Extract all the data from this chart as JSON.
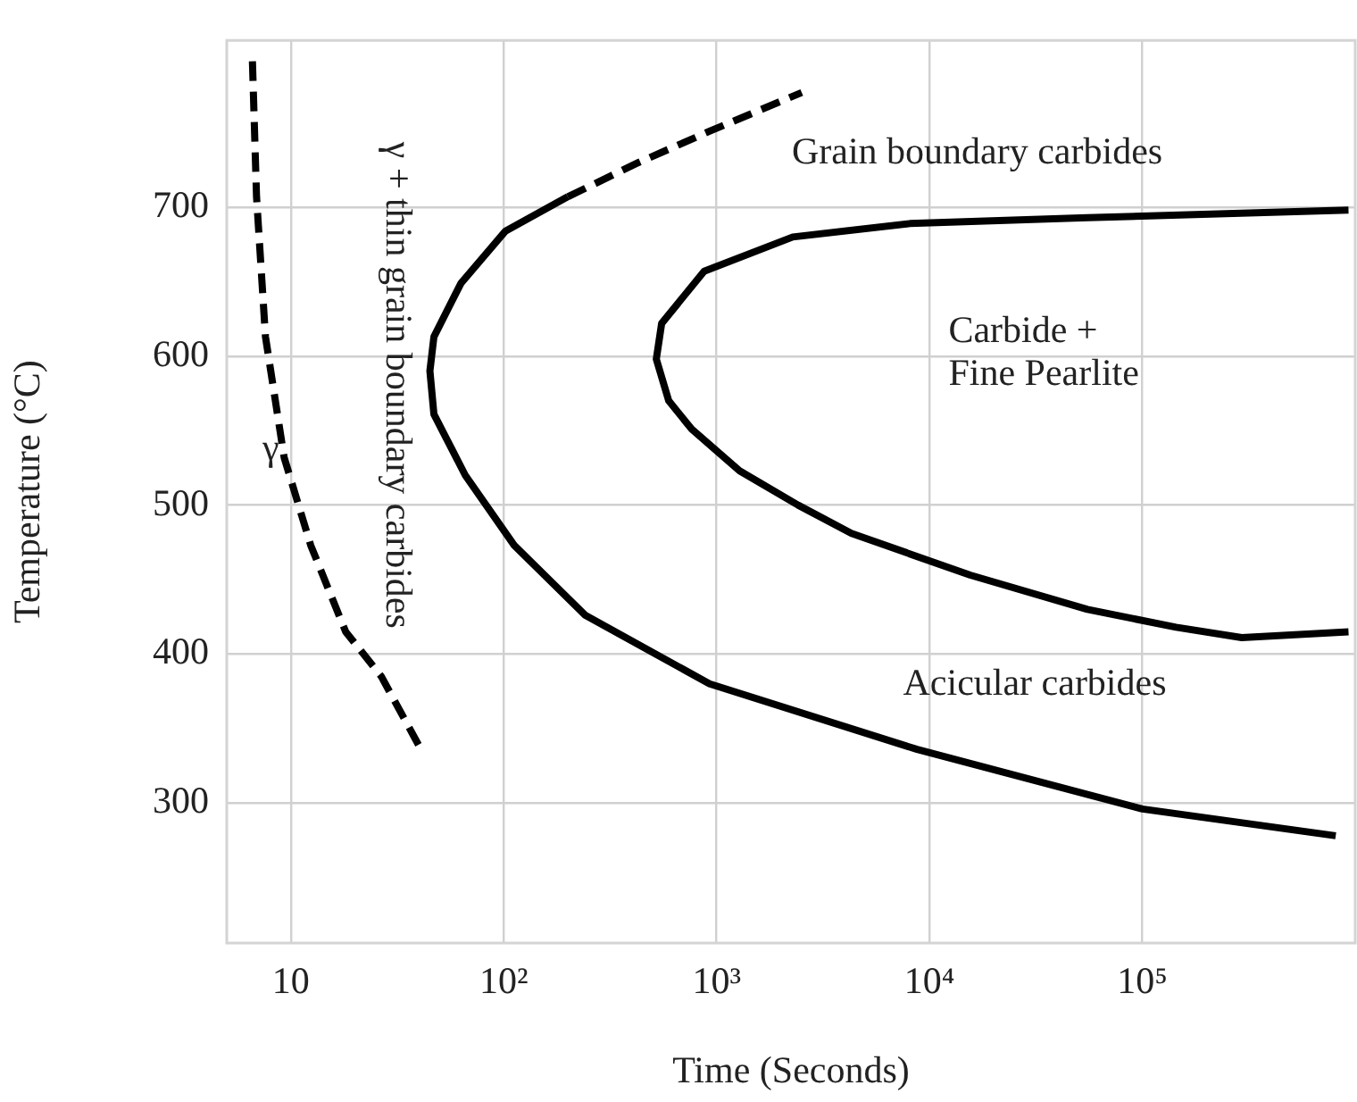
{
  "chart_data": {
    "type": "line",
    "xlabel": "Time (Seconds)",
    "ylabel": "Temperature (°C)",
    "log": "x",
    "xlim": [
      5,
      1000000
    ],
    "ylim": [
      206,
      812
    ],
    "xticks": [
      10,
      {
        "value": 100,
        "label": "10²"
      },
      {
        "value": 1000,
        "label": "10³"
      },
      {
        "value": 10000,
        "label": "10⁴"
      },
      {
        "value": 100000,
        "label": "10⁵"
      }
    ],
    "yticks": [
      300,
      400,
      500,
      600,
      700
    ],
    "grid": true,
    "legend": false,
    "marker": "none",
    "series": [
      {
        "color": "#000000",
        "line_style": "dashed",
        "x": [
          6.6,
          6.9,
          7.6,
          9.3,
          12.4,
          18.1,
          26.6,
          39.8
        ],
        "values": [
          798,
          707,
          613,
          532,
          473,
          415,
          385,
          339
        ]
      },
      {
        "color": "#000000",
        "line_style": "dashed",
        "x": [
          200,
          430,
          927,
          2512
        ],
        "values": [
          707,
          730,
          751,
          777
        ]
      },
      {
        "color": "#000000",
        "line_style": "solid",
        "x": [
          200,
          102,
          63,
          47,
          45,
          47,
          66,
          112,
          242,
          927,
          8750,
          100000,
          810000
        ],
        "values": [
          707,
          684,
          649,
          613,
          590,
          561,
          520,
          473,
          426,
          380,
          336,
          296,
          278
        ]
      },
      {
        "color": "#000000",
        "line_style": "solid",
        "x": [
          930000,
          55200,
          8090,
          2280,
          874,
          552,
          521,
          596,
          764,
          1283,
          2415,
          4300,
          15550,
          55200,
          144000,
          293000,
          930000
        ],
        "values": [
          698,
          693,
          689,
          680,
          657,
          622,
          598,
          570,
          551,
          523,
          500,
          481,
          453,
          430,
          418,
          411,
          415
        ]
      }
    ],
    "annotations": [
      "Grain boundary carbides",
      "Carbide +\nFine Pearlite",
      "Acicular carbides",
      "γ",
      "γ + thin grain boundary carbides"
    ]
  }
}
